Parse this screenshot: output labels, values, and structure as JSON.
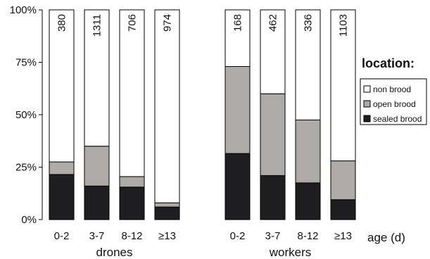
{
  "chart_data": {
    "type": "bar",
    "stacked": true,
    "normalized": true,
    "yticks": [
      "0%",
      "25%",
      "50%",
      "75%",
      "100%"
    ],
    "ylim": [
      0,
      100
    ],
    "x_axis_label": "age (d)",
    "legend_title": "location:",
    "groups": [
      {
        "name": "drones",
        "categories": [
          "0-2",
          "3-7",
          "8-12",
          "≥13"
        ],
        "counts": [
          "380",
          "1311",
          "706",
          "974"
        ]
      },
      {
        "name": "workers",
        "categories": [
          "0-2",
          "3-7",
          "8-12",
          "≥13"
        ],
        "counts": [
          "168",
          "462",
          "336",
          "1103"
        ]
      }
    ],
    "series": [
      {
        "name": "sealed brood",
        "color": "#1e1e20",
        "values": [
          21.5,
          16,
          15.5,
          6,
          31.5,
          21,
          17.5,
          9.5
        ]
      },
      {
        "name": "open brood",
        "color": "#adaaa7",
        "values": [
          6,
          19,
          5,
          2,
          41.5,
          39,
          30,
          18.5
        ]
      },
      {
        "name": "non brood",
        "color": "#ffffff",
        "values": [
          72.5,
          65,
          79.5,
          92,
          27,
          40,
          52.5,
          72
        ]
      }
    ],
    "legend_order": [
      "non brood",
      "open brood",
      "sealed brood"
    ],
    "legend_position": "right",
    "grid": false
  }
}
